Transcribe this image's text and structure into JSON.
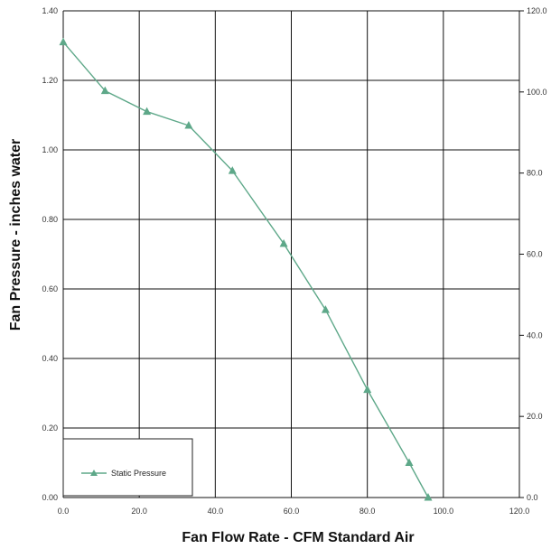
{
  "chart_data": {
    "type": "line",
    "xlabel": "Fan Flow Rate - CFM Standard Air",
    "ylabel": "Fan Pressure - inches water",
    "xlim": [
      0,
      120
    ],
    "ylim": [
      0,
      1.4
    ],
    "y2lim": [
      0,
      120
    ],
    "x_ticks": [
      "0.0",
      "20.0",
      "40.0",
      "60.0",
      "80.0",
      "100.0",
      "120.0"
    ],
    "y_ticks": [
      "0.00",
      "0.20",
      "0.40",
      "0.60",
      "0.80",
      "1.00",
      "1.20",
      "1.40"
    ],
    "y2_ticks": [
      "0.0",
      "20.0",
      "40.0",
      "60.0",
      "80.0",
      "100.0",
      "120.0"
    ],
    "grid": true,
    "legend_position": "bottom-left",
    "series": [
      {
        "name": "Static Pressure",
        "color": "#5ea889",
        "marker": "triangle",
        "x": [
          0.0,
          11.0,
          22.0,
          33.0,
          44.5,
          58.0,
          69.0,
          80.0,
          91.0,
          96.0
        ],
        "y": [
          1.31,
          1.17,
          1.11,
          1.07,
          0.94,
          0.73,
          0.54,
          0.31,
          0.1,
          0.0
        ]
      }
    ]
  }
}
